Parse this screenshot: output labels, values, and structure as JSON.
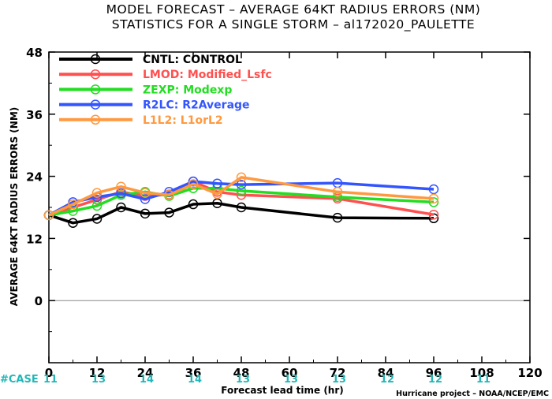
{
  "title_line1": "MODEL FORECAST – AVERAGE 64KT RADIUS ERRORS (NM)",
  "title_line2": "STATISTICS FOR A SINGLE STORM – al172020_PAULETTE",
  "case_label": "#CASE",
  "credit": "Hurricane project – NOAA/NCEP/EMC",
  "chart_data": {
    "type": "line",
    "xlabel": "Forecast lead time (hr)",
    "ylabel": "AVERAGE 64KT RADIUS ERRORS (NM)",
    "xlim": [
      0,
      120
    ],
    "ylim": [
      -12,
      48
    ],
    "xticks": [
      0,
      12,
      24,
      36,
      48,
      60,
      72,
      84,
      96,
      108,
      120
    ],
    "yticks": [
      0,
      12,
      24,
      36,
      48
    ],
    "xtick_labels": [
      "0",
      "12",
      "24",
      "36",
      "48",
      "60",
      "72",
      "84",
      "96",
      "108",
      "120"
    ],
    "ytick_labels": [
      "0",
      "12",
      "24",
      "36",
      "48"
    ],
    "zero_line": true,
    "grid": false,
    "legend_position": "top-left",
    "cases": [
      {
        "x": 0,
        "label": "11"
      },
      {
        "x": 12,
        "label": "13"
      },
      {
        "x": 24,
        "label": "14"
      },
      {
        "x": 36,
        "label": "14"
      },
      {
        "x": 48,
        "label": "13"
      },
      {
        "x": 60,
        "label": "13"
      },
      {
        "x": 72,
        "label": "13"
      },
      {
        "x": 84,
        "label": "12"
      },
      {
        "x": 96,
        "label": "12"
      },
      {
        "x": 108,
        "label": "11"
      }
    ],
    "series": [
      {
        "name": "CNTL: CONTROL",
        "color": "#000000",
        "x": [
          0,
          6,
          12,
          18,
          24,
          30,
          36,
          42,
          48,
          72,
          96
        ],
        "y": [
          16.5,
          15.0,
          15.8,
          18.0,
          16.8,
          17.0,
          18.6,
          18.8,
          18.0,
          16.0,
          15.9
        ]
      },
      {
        "name": "LMOD: Modified_Lsfc",
        "color": "#ff5050",
        "x": [
          0,
          6,
          12,
          18,
          24,
          30,
          36,
          42,
          48,
          72,
          96
        ],
        "y": [
          16.5,
          18.0,
          19.5,
          21.0,
          20.2,
          20.5,
          23.0,
          21.0,
          20.4,
          19.7,
          16.6
        ]
      },
      {
        "name": "ZEXP: Modexp",
        "color": "#22dd22",
        "x": [
          0,
          6,
          12,
          18,
          24,
          30,
          36,
          42,
          48,
          72,
          96
        ],
        "y": [
          16.5,
          17.3,
          18.3,
          20.4,
          21.0,
          20.2,
          21.7,
          21.7,
          21.2,
          20.0,
          19.0
        ]
      },
      {
        "name": "R2LC: R2Average",
        "color": "#3355ff",
        "x": [
          0,
          6,
          12,
          18,
          24,
          30,
          36,
          42,
          48,
          72,
          96
        ],
        "y": [
          16.5,
          19.0,
          20.0,
          20.7,
          19.6,
          21.0,
          23.0,
          22.6,
          22.4,
          22.7,
          21.5
        ]
      },
      {
        "name": "L1L2: L1orL2",
        "color": "#ff9940",
        "x": [
          0,
          6,
          12,
          18,
          24,
          30,
          36,
          42,
          48,
          72,
          96
        ],
        "y": [
          16.5,
          18.6,
          20.8,
          22.0,
          20.8,
          20.4,
          22.5,
          20.6,
          23.8,
          21.0,
          19.7
        ]
      }
    ]
  }
}
